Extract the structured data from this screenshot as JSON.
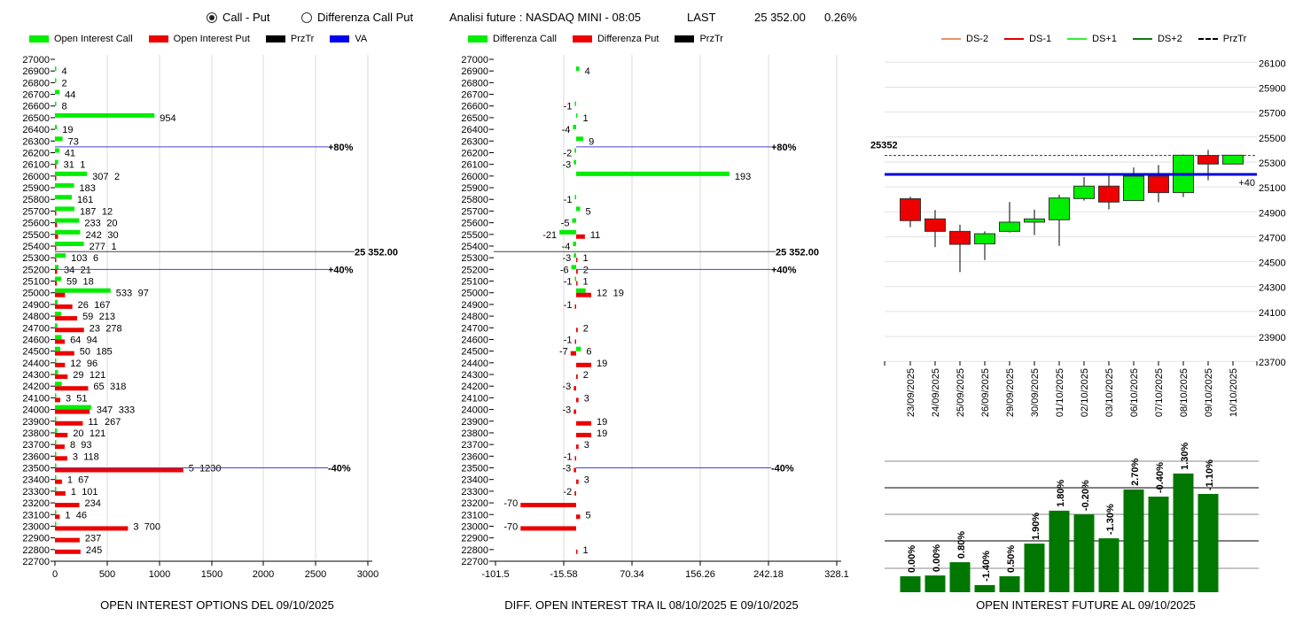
{
  "header": {
    "radio_options": [
      {
        "label": "Call - Put",
        "selected": true
      },
      {
        "label": "Differenza Call Put",
        "selected": false
      }
    ],
    "title": "Analisi future : NASDAQ MINI - 08:05",
    "last_label": "LAST",
    "last_value": "25 352.00",
    "change": "0.26%"
  },
  "colors": {
    "call": "#00ee00",
    "put": "#ee0000",
    "prztr": "#000000",
    "va": "#0000dd",
    "ds_minus2": "#e8906a",
    "ds_minus1": "#dd0000",
    "ds_plus1": "#33ee33",
    "ds_plus2": "#117711",
    "future_bar": "#007700"
  },
  "left_chart": {
    "legend": [
      "Open Interest Call",
      "Open Interest Put",
      "PrzTr",
      "VA"
    ],
    "footer": "OPEN INTEREST OPTIONS DEL 09/10/2025",
    "x_ticks": [
      "0",
      "500",
      "1000",
      "1500",
      "2000",
      "2500",
      "3000"
    ],
    "xlim": [
      0,
      3000
    ],
    "lines": [
      {
        "label": "+80%",
        "strike": 26250,
        "type": "va"
      },
      {
        "label": "25 352.00",
        "strike": 25352,
        "type": "prztr"
      },
      {
        "label": "+40%",
        "strike": 25200,
        "type": "va"
      },
      {
        "label": "-40%",
        "strike": 23500,
        "type": "va"
      }
    ],
    "rows": [
      {
        "k": "27000",
        "c": null,
        "p": null
      },
      {
        "k": "26900",
        "c": 4,
        "p": null
      },
      {
        "k": "26800",
        "c": 2,
        "p": null
      },
      {
        "k": "26700",
        "c": 44,
        "p": null
      },
      {
        "k": "26600",
        "c": 8,
        "p": null
      },
      {
        "k": "26500",
        "c": 954,
        "p": null
      },
      {
        "k": "26400",
        "c": 19,
        "p": null
      },
      {
        "k": "26300",
        "c": 73,
        "p": null
      },
      {
        "k": "26200",
        "c": 41,
        "p": null
      },
      {
        "k": "26100",
        "c": 31,
        "p": 1
      },
      {
        "k": "26000",
        "c": 307,
        "p": 2
      },
      {
        "k": "25900",
        "c": 183,
        "p": null
      },
      {
        "k": "25800",
        "c": 161,
        "p": null
      },
      {
        "k": "25700",
        "c": 187,
        "p": 12
      },
      {
        "k": "25600",
        "c": 233,
        "p": 20
      },
      {
        "k": "25500",
        "c": 242,
        "p": 30
      },
      {
        "k": "25400",
        "c": 277,
        "p": 1
      },
      {
        "k": "25300",
        "c": 103,
        "p": 6
      },
      {
        "k": "25200",
        "c": 34,
        "p": 21
      },
      {
        "k": "25100",
        "c": 59,
        "p": 18
      },
      {
        "k": "25000",
        "c": 533,
        "p": 97
      },
      {
        "k": "24900",
        "c": 26,
        "p": 167
      },
      {
        "k": "24800",
        "c": 59,
        "p": 213
      },
      {
        "k": "24700",
        "c": 23,
        "p": 278
      },
      {
        "k": "24600",
        "c": 64,
        "p": 94
      },
      {
        "k": "24500",
        "c": 50,
        "p": 185
      },
      {
        "k": "24400",
        "c": 12,
        "p": 96
      },
      {
        "k": "24300",
        "c": 29,
        "p": 121
      },
      {
        "k": "24200",
        "c": 65,
        "p": 318
      },
      {
        "k": "24100",
        "c": 3,
        "p": 51
      },
      {
        "k": "24000",
        "c": 347,
        "p": 333
      },
      {
        "k": "23900",
        "c": 11,
        "p": 267
      },
      {
        "k": "23800",
        "c": 20,
        "p": 121
      },
      {
        "k": "23700",
        "c": 8,
        "p": 93
      },
      {
        "k": "23600",
        "c": 3,
        "p": 118
      },
      {
        "k": "23500",
        "c": 5,
        "p": 1230
      },
      {
        "k": "23400",
        "c": 1,
        "p": 67
      },
      {
        "k": "23300",
        "c": 1,
        "p": 101
      },
      {
        "k": "23200",
        "c": null,
        "p": 234
      },
      {
        "k": "23100",
        "c": 1,
        "p": 46
      },
      {
        "k": "23000",
        "c": 3,
        "p": 700
      },
      {
        "k": "22900",
        "c": null,
        "p": 237
      },
      {
        "k": "22800",
        "c": null,
        "p": 245
      },
      {
        "k": "22700",
        "c": null,
        "p": null
      }
    ]
  },
  "mid_chart": {
    "legend": [
      "Differenza Call",
      "Differenza Put",
      "PrzTr"
    ],
    "footer": "DIFF. OPEN INTEREST TRA IL 08/10/2025 E 09/10/2025",
    "x_ticks": [
      "-101.5",
      "-15.58",
      "70.34",
      "156.26",
      "242.18",
      "328.1"
    ],
    "xlim": [
      -101.5,
      328.1
    ],
    "lines": [
      {
        "label": "+80%",
        "strike": 26250,
        "type": "va"
      },
      {
        "label": "25 352.00",
        "strike": 25352,
        "type": "prztr"
      },
      {
        "label": "+40%",
        "strike": 25200,
        "type": "va"
      },
      {
        "label": "-40%",
        "strike": 23500,
        "type": "va"
      }
    ],
    "rows": [
      {
        "k": "27000",
        "c": null,
        "p": null
      },
      {
        "k": "26900",
        "c": 4,
        "p": null
      },
      {
        "k": "26800",
        "c": null,
        "p": null
      },
      {
        "k": "26700",
        "c": null,
        "p": null
      },
      {
        "k": "26600",
        "c": -1,
        "p": null
      },
      {
        "k": "26500",
        "c": 1,
        "p": null
      },
      {
        "k": "26400",
        "c": -4,
        "p": null
      },
      {
        "k": "26300",
        "c": 9,
        "p": null
      },
      {
        "k": "26200",
        "c": -2,
        "p": null
      },
      {
        "k": "26100",
        "c": -3,
        "p": null
      },
      {
        "k": "26000",
        "c": 193,
        "p": null
      },
      {
        "k": "25900",
        "c": null,
        "p": null
      },
      {
        "k": "25800",
        "c": -1,
        "p": null
      },
      {
        "k": "25700",
        "c": 5,
        "p": null
      },
      {
        "k": "25600",
        "c": -5,
        "p": null
      },
      {
        "k": "25500",
        "c": -21,
        "p": 11
      },
      {
        "k": "25400",
        "c": -4,
        "p": null
      },
      {
        "k": "25300",
        "c": -3,
        "p": 1
      },
      {
        "k": "25200",
        "c": -6,
        "p": 2
      },
      {
        "k": "25100",
        "c": -1,
        "p": 1
      },
      {
        "k": "25000",
        "c": 12,
        "p": 19
      },
      {
        "k": "24900",
        "c": null,
        "p": -1
      },
      {
        "k": "24800",
        "c": null,
        "p": null
      },
      {
        "k": "24700",
        "c": null,
        "p": 2
      },
      {
        "k": "24600",
        "c": null,
        "p": -1
      },
      {
        "k": "24500",
        "c": 6,
        "p": -7
      },
      {
        "k": "24400",
        "c": null,
        "p": 19
      },
      {
        "k": "24300",
        "c": null,
        "p": 2
      },
      {
        "k": "24200",
        "c": null,
        "p": -3
      },
      {
        "k": "24100",
        "c": null,
        "p": 3
      },
      {
        "k": "24000",
        "c": null,
        "p": -3
      },
      {
        "k": "23900",
        "c": null,
        "p": 19
      },
      {
        "k": "23800",
        "c": null,
        "p": 19
      },
      {
        "k": "23700",
        "c": null,
        "p": 3
      },
      {
        "k": "23600",
        "c": null,
        "p": -1
      },
      {
        "k": "23500",
        "c": null,
        "p": -3
      },
      {
        "k": "23400",
        "c": null,
        "p": 3
      },
      {
        "k": "23300",
        "c": null,
        "p": -2
      },
      {
        "k": "23200",
        "c": null,
        "p": -70
      },
      {
        "k": "23100",
        "c": null,
        "p": 5
      },
      {
        "k": "23000",
        "c": null,
        "p": -70
      },
      {
        "k": "22900",
        "c": null,
        "p": null
      },
      {
        "k": "22800",
        "c": null,
        "p": 1
      },
      {
        "k": "22700",
        "c": null,
        "p": null
      }
    ]
  },
  "chart_data": [
    {
      "type": "candlestick",
      "legend": [
        "DS-2",
        "DS-1",
        "DS+1",
        "DS+2",
        "PrzTr"
      ],
      "ylim": [
        23700,
        26100
      ],
      "y_ticks": [
        "26100",
        "25900",
        "25700",
        "25500",
        "25300",
        "25100",
        "24900",
        "24700",
        "24500",
        "24300",
        "24100",
        "23900",
        "23700"
      ],
      "prztr_label": "25352",
      "prztr": 25352,
      "va_level": 25200,
      "va_label": "+40",
      "candles": [
        {
          "date": "23/09/2025",
          "o": 25005,
          "h": 25021,
          "l": 24777,
          "c": 24829
        },
        {
          "date": "24/09/2025",
          "o": 24843,
          "h": 24914,
          "l": 24617,
          "c": 24743
        },
        {
          "date": "25/09/2025",
          "o": 24743,
          "h": 24796,
          "l": 24416,
          "c": 24639
        },
        {
          "date": "26/09/2025",
          "o": 24643,
          "h": 24743,
          "l": 24513,
          "c": 24724
        },
        {
          "date": "29/09/2025",
          "o": 24743,
          "h": 24978,
          "l": 24733,
          "c": 24817
        },
        {
          "date": "30/09/2025",
          "o": 24817,
          "h": 24917,
          "l": 24714,
          "c": 24843
        },
        {
          "date": "01/10/2025",
          "o": 24836,
          "h": 25037,
          "l": 24627,
          "c": 25011
        },
        {
          "date": "02/10/2025",
          "o": 25006,
          "h": 25179,
          "l": 24990,
          "c": 25106
        },
        {
          "date": "03/10/2025",
          "o": 25106,
          "h": 25189,
          "l": 24919,
          "c": 24978
        },
        {
          "date": "06/10/2025",
          "o": 24990,
          "h": 25255,
          "l": 24990,
          "c": 25186
        },
        {
          "date": "07/10/2025",
          "o": 25186,
          "h": 25276,
          "l": 24976,
          "c": 25054
        },
        {
          "date": "08/10/2025",
          "o": 25054,
          "h": 25360,
          "l": 25018,
          "c": 25354
        },
        {
          "date": "09/10/2025",
          "o": 25352,
          "h": 25397,
          "l": 25153,
          "c": 25283
        },
        {
          "date": "10/10/2025",
          "o": 25283,
          "h": 25354,
          "l": 25283,
          "c": 25354
        }
      ]
    },
    {
      "type": "bar",
      "title": "OPEN INTEREST FUTURE AL 09/10/2025",
      "grid": true,
      "relative_values": [
        0.6,
        0.63,
        1.13,
        0.27,
        0.6,
        1.83,
        3.07,
        2.93,
        2.03,
        3.87,
        3.6,
        4.47,
        3.7
      ],
      "labels": [
        "0.00%",
        "0.00%",
        "0.80%",
        "-1.40%",
        "0.50%",
        "1.90%",
        "1.80%",
        "-0.20%",
        "-1.30%",
        "2.70%",
        "-0.40%",
        "1.30%",
        "-1.10%"
      ]
    }
  ]
}
